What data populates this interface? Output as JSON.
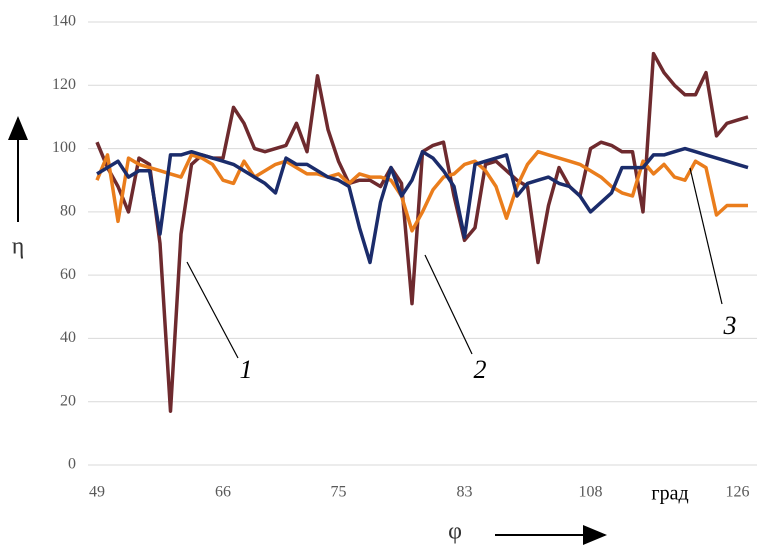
{
  "chart_data": {
    "type": "line",
    "categories": [
      "49",
      null,
      null,
      null,
      null,
      null,
      null,
      null,
      null,
      null,
      null,
      null,
      "66",
      null,
      null,
      null,
      null,
      null,
      null,
      null,
      null,
      null,
      null,
      "75",
      null,
      null,
      null,
      null,
      null,
      null,
      null,
      null,
      null,
      null,
      null,
      "83",
      null,
      null,
      null,
      null,
      null,
      null,
      null,
      null,
      null,
      null,
      null,
      "108",
      null,
      null,
      null,
      null,
      null,
      null,
      null,
      null,
      null,
      null,
      null,
      null,
      null,
      "126",
      null
    ],
    "series": [
      {
        "color": "#6e2a2e",
        "values": [
          102,
          94,
          88,
          80,
          97,
          95,
          70,
          17,
          73,
          95,
          98,
          97,
          97,
          113,
          108,
          100,
          99,
          100,
          101,
          108,
          99,
          123,
          106,
          96,
          89,
          90,
          90,
          88,
          94,
          89,
          51,
          99,
          101,
          102,
          85,
          71,
          75,
          95,
          96,
          93,
          90,
          88,
          64,
          82,
          94,
          88,
          85,
          100,
          102,
          101,
          99,
          99,
          80,
          130,
          124,
          120,
          117,
          117,
          124,
          104,
          108,
          109,
          110
        ]
      },
      {
        "color": "#ea7d1c",
        "values": [
          90,
          98,
          77,
          97,
          95,
          94,
          93,
          92,
          91,
          98,
          97,
          95,
          90,
          89,
          96,
          91,
          93,
          95,
          96,
          94,
          92,
          92,
          91,
          92,
          89,
          92,
          91,
          91,
          90,
          85,
          74,
          80,
          87,
          91,
          92,
          95,
          96,
          93,
          88,
          78,
          88,
          95,
          99,
          98,
          97,
          96,
          95,
          93,
          91,
          88,
          86,
          85,
          96,
          92,
          95,
          91,
          90,
          96,
          94,
          79,
          82,
          82,
          82
        ]
      },
      {
        "color": "#1b2c6b",
        "values": [
          92,
          94,
          96,
          91,
          93,
          93,
          73,
          98,
          98,
          99,
          98,
          97,
          96,
          95,
          93,
          91,
          89,
          86,
          97,
          95,
          95,
          93,
          91,
          90,
          88,
          75,
          64,
          83,
          94,
          85,
          90,
          99,
          97,
          93,
          88,
          72,
          95,
          96,
          97,
          98,
          85,
          89,
          90,
          91,
          89,
          88,
          85,
          80,
          83,
          86,
          94,
          94,
          94,
          98,
          98,
          99,
          100,
          99,
          98,
          97,
          96,
          95,
          94
        ]
      }
    ],
    "ylim": [
      0,
      140
    ],
    "yticks": [
      0,
      20,
      40,
      60,
      80,
      100,
      120,
      140
    ],
    "grid": true,
    "y_label": "η",
    "x_label": "φ",
    "x_unit": "град",
    "annotations": [
      "1",
      "2",
      "3"
    ]
  }
}
